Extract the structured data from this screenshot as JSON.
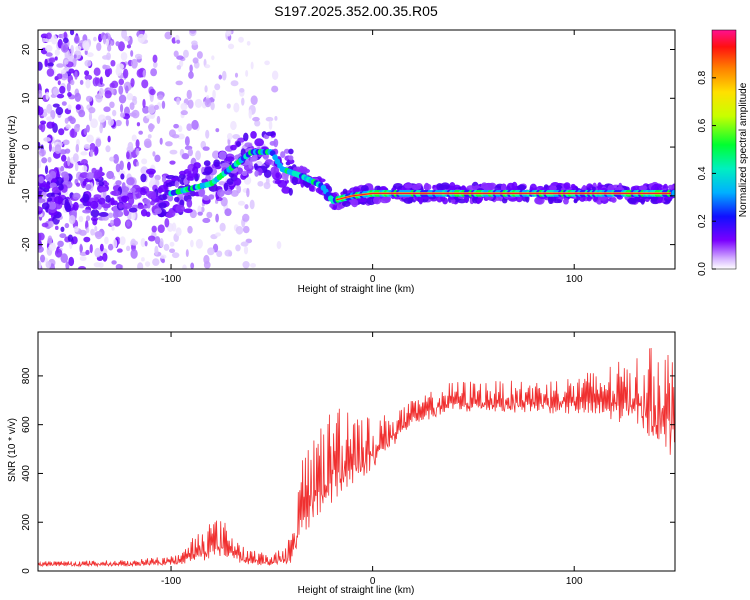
{
  "title": "S197.2025.352.00.35.R05",
  "colors": {
    "snr_line": "#f03030",
    "spectrum_low": "#e8d8ff",
    "spectrum_mid": "#6a00ff",
    "spectrum_peak": "#ff1030"
  },
  "chart_data": [
    {
      "type": "heatmap",
      "title": "S197.2025.352.00.35.R05",
      "xlabel": "Height of straight line (km)",
      "ylabel": "Frequency (Hz)",
      "xlim": [
        -166,
        150
      ],
      "ylim": [
        -25,
        24
      ],
      "xticks": [
        -100,
        0,
        100
      ],
      "yticks": [
        -20,
        -10,
        0,
        10,
        20
      ],
      "grid": false,
      "ridge": {
        "description_points": [
          {
            "x": -100,
            "freq": -9.5
          },
          {
            "x": -80,
            "freq": -7.5
          },
          {
            "x": -60,
            "freq": -1
          },
          {
            "x": -50,
            "freq": -1
          },
          {
            "x": -45,
            "freq": -4.5
          },
          {
            "x": -35,
            "freq": -6
          },
          {
            "x": -25,
            "freq": -8
          },
          {
            "x": -20,
            "freq": -11
          },
          {
            "x": -10,
            "freq": -10
          },
          {
            "x": 0,
            "freq": -9.5
          },
          {
            "x": 50,
            "freq": -9.5
          },
          {
            "x": 100,
            "freq": -9.5
          },
          {
            "x": 150,
            "freq": -9.5
          }
        ]
      },
      "colorbar": {
        "label": "Normalized spectral amplitude",
        "range": [
          0.0,
          1.0
        ],
        "ticks": [
          "0.0",
          "0.2",
          "0.4",
          "0.6",
          "0.8"
        ]
      }
    },
    {
      "type": "line",
      "xlabel": "Height of straight line (km)",
      "ylabel": "SNR (10 * v/v)",
      "xlim": [
        -166,
        150
      ],
      "ylim": [
        0,
        980
      ],
      "xticks": [
        -100,
        0,
        100
      ],
      "yticks": [
        0,
        200,
        400,
        600,
        800
      ],
      "grid": false,
      "series": [
        {
          "name": "SNR",
          "envelope": [
            {
              "x": -166,
              "base": 20,
              "peak": 40
            },
            {
              "x": -120,
              "base": 20,
              "peak": 45
            },
            {
              "x": -95,
              "base": 25,
              "peak": 70
            },
            {
              "x": -85,
              "base": 40,
              "peak": 200
            },
            {
              "x": -75,
              "base": 60,
              "peak": 220
            },
            {
              "x": -65,
              "base": 30,
              "peak": 110
            },
            {
              "x": -50,
              "base": 20,
              "peak": 60
            },
            {
              "x": -40,
              "base": 30,
              "peak": 150
            },
            {
              "x": -35,
              "base": 120,
              "peak": 450
            },
            {
              "x": -30,
              "base": 200,
              "peak": 560
            },
            {
              "x": -15,
              "base": 300,
              "peak": 730
            },
            {
              "x": 0,
              "base": 420,
              "peak": 620
            },
            {
              "x": 20,
              "base": 600,
              "peak": 700
            },
            {
              "x": 40,
              "base": 650,
              "peak": 780
            },
            {
              "x": 80,
              "base": 650,
              "peak": 780
            },
            {
              "x": 100,
              "base": 640,
              "peak": 800
            },
            {
              "x": 130,
              "base": 600,
              "peak": 880
            },
            {
              "x": 145,
              "base": 500,
              "peak": 950
            },
            {
              "x": 150,
              "base": 450,
              "peak": 880
            }
          ]
        }
      ]
    }
  ]
}
